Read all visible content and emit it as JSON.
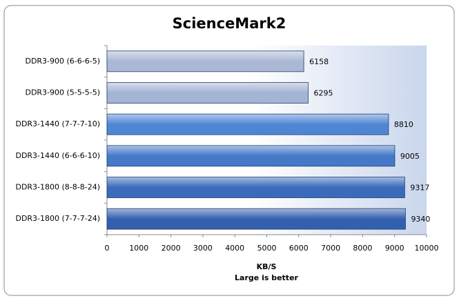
{
  "chart_data": {
    "type": "bar",
    "orientation": "horizontal",
    "title": "ScienceMark2",
    "xlabel": "KB/S",
    "xlabel_note": "Large is better",
    "categories": [
      "DDR3-900 (6-6-6-5)",
      "DDR3-900 (5-5-5-5)",
      "DDR3-1440 (7-7-7-10)",
      "DDR3-1440 (6-6-6-10)",
      "DDR3-1800 (8-8-8-24)",
      "DDR3-1800 (7-7-7-24)"
    ],
    "values": [
      6158,
      6295,
      8810,
      9005,
      9317,
      9340
    ],
    "colors": [
      "#aab8d4",
      "#a4b4d4",
      "#4f86d4",
      "#4579c8",
      "#3a6bba",
      "#3360ae"
    ],
    "xlim": [
      0,
      10000
    ],
    "xticks": [
      0,
      1000,
      2000,
      3000,
      4000,
      5000,
      6000,
      7000,
      8000,
      9000,
      10000
    ],
    "grid": false
  }
}
